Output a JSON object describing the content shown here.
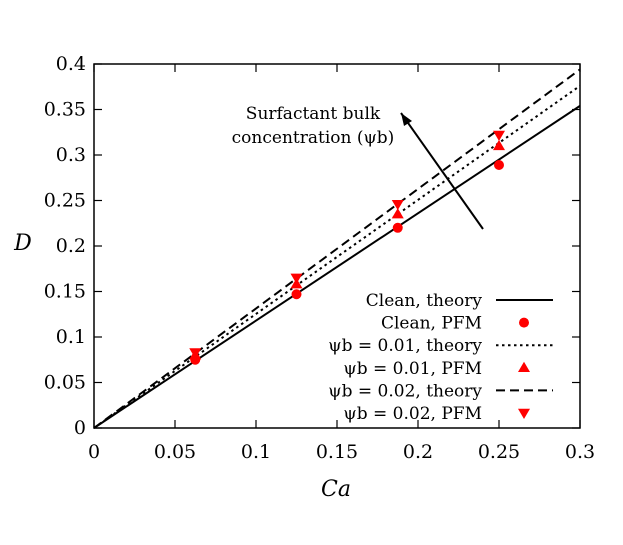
{
  "chart_data": {
    "type": "line",
    "title": "",
    "xlabel": "Ca",
    "ylabel": "D",
    "xlim": [
      0,
      0.3
    ],
    "ylim": [
      0,
      0.4
    ],
    "xticks": [
      "0",
      "0.05",
      "0.1",
      "0.15",
      "0.2",
      "0.25",
      "0.3"
    ],
    "yticks": [
      "0",
      "0.05",
      "0.1",
      "0.15",
      "0.2",
      "0.25",
      "0.3",
      "0.35",
      "0.4"
    ],
    "grid": false,
    "legend_position": "bottom-right",
    "annotation": {
      "line1": "Surfactant bulk",
      "line2": "concentration (ψb)"
    },
    "series": [
      {
        "name": "Clean, theory",
        "kind": "line",
        "dash": "solid",
        "color": "#000000",
        "x": [
          0,
          0.3
        ],
        "y": [
          0,
          0.354
        ]
      },
      {
        "name": "Clean, PFM",
        "kind": "marker",
        "marker": "circle",
        "color": "#ff0000",
        "x": [
          0.0625,
          0.125,
          0.1875,
          0.25
        ],
        "y": [
          0.075,
          0.147,
          0.22,
          0.289
        ]
      },
      {
        "name": "ψb = 0.01, theory",
        "kind": "line",
        "dash": "dotted",
        "color": "#000000",
        "x": [
          0,
          0.3
        ],
        "y": [
          0,
          0.376
        ]
      },
      {
        "name": "ψb = 0.01, PFM",
        "kind": "marker",
        "marker": "triangle-up",
        "color": "#ff0000",
        "x": [
          0.0625,
          0.125,
          0.1875,
          0.25
        ],
        "y": [
          0.08,
          0.158,
          0.235,
          0.31
        ]
      },
      {
        "name": "ψb = 0.02, theory",
        "kind": "line",
        "dash": "dashed",
        "color": "#000000",
        "x": [
          0,
          0.3
        ],
        "y": [
          0,
          0.394
        ]
      },
      {
        "name": "ψb = 0.02, PFM",
        "kind": "marker",
        "marker": "triangle-down",
        "color": "#ff0000",
        "x": [
          0.0625,
          0.125,
          0.1875,
          0.25
        ],
        "y": [
          0.083,
          0.165,
          0.246,
          0.322
        ]
      }
    ]
  }
}
